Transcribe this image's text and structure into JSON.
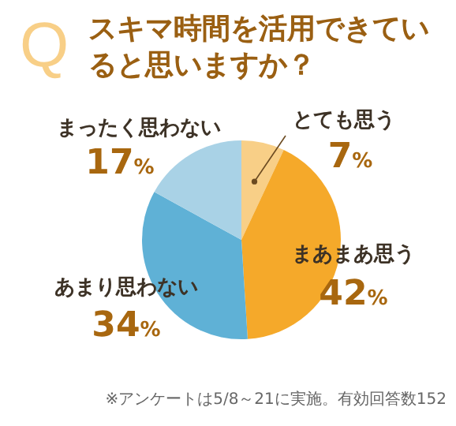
{
  "chart_data": {
    "type": "pie",
    "title": "スキマ時間を活用できていると思いますか？",
    "categories": [
      "とても思う",
      "まあまあ思う",
      "あまり思わない",
      "まったく思わない"
    ],
    "values": [
      7,
      42,
      34,
      17
    ],
    "colors": [
      "#f8cf87",
      "#f5a92a",
      "#5fb1d6",
      "#a9d2e6"
    ],
    "value_labels": [
      "7%",
      "42%",
      "34%",
      "17%"
    ],
    "annotations": [
      "Q",
      "※アンケートは5/8～21に実施。有効回答数152"
    ]
  }
}
